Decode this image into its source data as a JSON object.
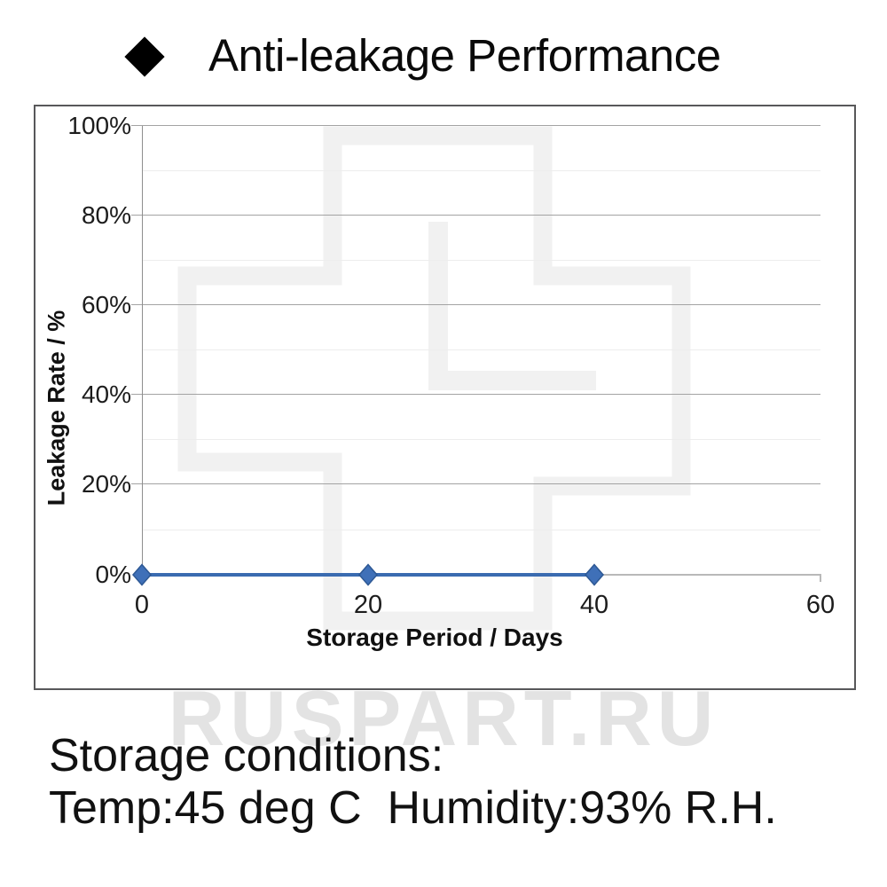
{
  "title": {
    "text": "Anti-leakage Performance"
  },
  "watermark": {
    "text": "RUSPART.RU"
  },
  "chart_data": {
    "type": "line",
    "title": "Anti-leakage Performance",
    "x": [
      0,
      20,
      40
    ],
    "series": [
      {
        "name": "Leakage Rate",
        "values": [
          0,
          0,
          0
        ]
      }
    ],
    "xlabel": "Storage Period / Days",
    "ylabel": "Leakage Rate / %",
    "xlim": [
      0,
      60
    ],
    "ylim": [
      0,
      100
    ],
    "x_ticks": [
      "0",
      "20",
      "40",
      "60"
    ],
    "y_ticks": [
      "0%",
      "20%",
      "40%",
      "60%",
      "80%",
      "100%"
    ],
    "grid": "on",
    "legend": "none",
    "line_color": "#3a6bb0",
    "marker_fill": "#3f70b8",
    "marker_edge": "#2d5894",
    "marker": "diamond"
  },
  "footer": {
    "line1": "Storage conditions:",
    "line2": "Temp:45 deg C  Humidity:93% R.H."
  }
}
